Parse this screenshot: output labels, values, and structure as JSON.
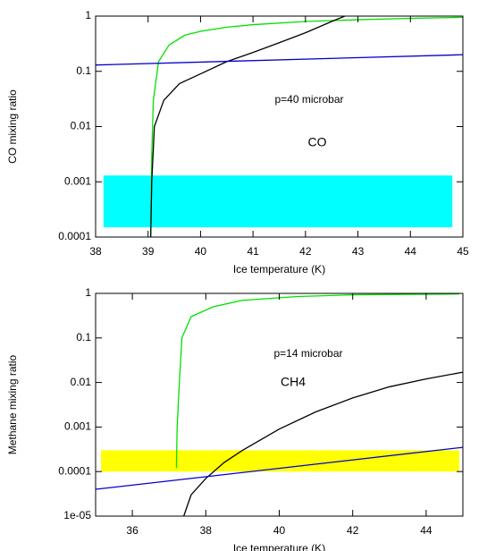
{
  "chart_data": [
    {
      "type": "line",
      "logy": true,
      "xlabel": "Ice temperature (K)",
      "ylabel": "CO mixing ratio",
      "annotations": [
        "p=40 microbar",
        "CO"
      ],
      "xlim": [
        38,
        45
      ],
      "xticks": [
        38,
        39,
        40,
        41,
        42,
        43,
        44,
        45
      ],
      "ylim": [
        0.0001,
        1
      ],
      "yticks": [
        0.0001,
        0.001,
        0.01,
        0.1,
        1
      ],
      "bands": [
        {
          "color": "#00ffff",
          "xlim": [
            38.15,
            44.8
          ],
          "ylim": [
            0.00015,
            0.0013
          ]
        }
      ],
      "series": [
        {
          "color": "#00e000",
          "x": [
            39.05,
            39.07,
            39.1,
            39.2,
            39.4,
            39.7,
            40,
            40.5,
            41,
            42,
            43,
            44,
            45
          ],
          "values": [
            0.0001,
            0.003,
            0.03,
            0.15,
            0.3,
            0.45,
            0.53,
            0.63,
            0.7,
            0.8,
            0.86,
            0.91,
            0.95
          ]
        },
        {
          "color": "#000000",
          "x": [
            39.05,
            39.07,
            39.12,
            39.3,
            39.6,
            40,
            40.5,
            41,
            41.5,
            42,
            42.5,
            42.75
          ],
          "values": [
            0.0001,
            0.001,
            0.01,
            0.03,
            0.06,
            0.09,
            0.15,
            0.22,
            0.33,
            0.5,
            0.8,
            1
          ]
        },
        {
          "color": "#0000cc",
          "x": [
            38,
            45
          ],
          "values": [
            0.13,
            0.2
          ]
        }
      ]
    },
    {
      "type": "line",
      "logy": true,
      "xlabel": "Ice temperature (K)",
      "ylabel": "Methane mixing ratio",
      "annotations": [
        "p=14 microbar",
        "CH4"
      ],
      "xlim": [
        35,
        45
      ],
      "xticks": [
        36,
        38,
        40,
        42,
        44
      ],
      "ylim": [
        1e-05,
        1
      ],
      "yticks": [
        {
          "value": 1e-05,
          "label": "1e-05"
        },
        0.0001,
        0.001,
        0.01,
        0.1,
        1
      ],
      "bands": [
        {
          "color": "#ffff00",
          "xlim": [
            35.15,
            44.9
          ],
          "ylim": [
            0.0001,
            0.0003
          ]
        }
      ],
      "series": [
        {
          "color": "#00e000",
          "x": [
            37.2,
            37.22,
            37.28,
            37.35,
            37.6,
            38.2,
            39,
            40.5,
            42,
            44.9
          ],
          "values": [
            0.00012,
            0.001,
            0.01,
            0.1,
            0.3,
            0.5,
            0.7,
            0.85,
            0.93,
            0.97
          ]
        },
        {
          "color": "#000000",
          "x": [
            37.4,
            37.6,
            38,
            38.5,
            39,
            40,
            41,
            42,
            43,
            44,
            45
          ],
          "values": [
            1e-05,
            3e-05,
            7e-05,
            0.00016,
            0.0003,
            0.0009,
            0.0022,
            0.0045,
            0.008,
            0.012,
            0.017
          ]
        },
        {
          "color": "#0000cc",
          "x": [
            35,
            45
          ],
          "values": [
            4e-05,
            0.00035
          ]
        }
      ]
    }
  ]
}
